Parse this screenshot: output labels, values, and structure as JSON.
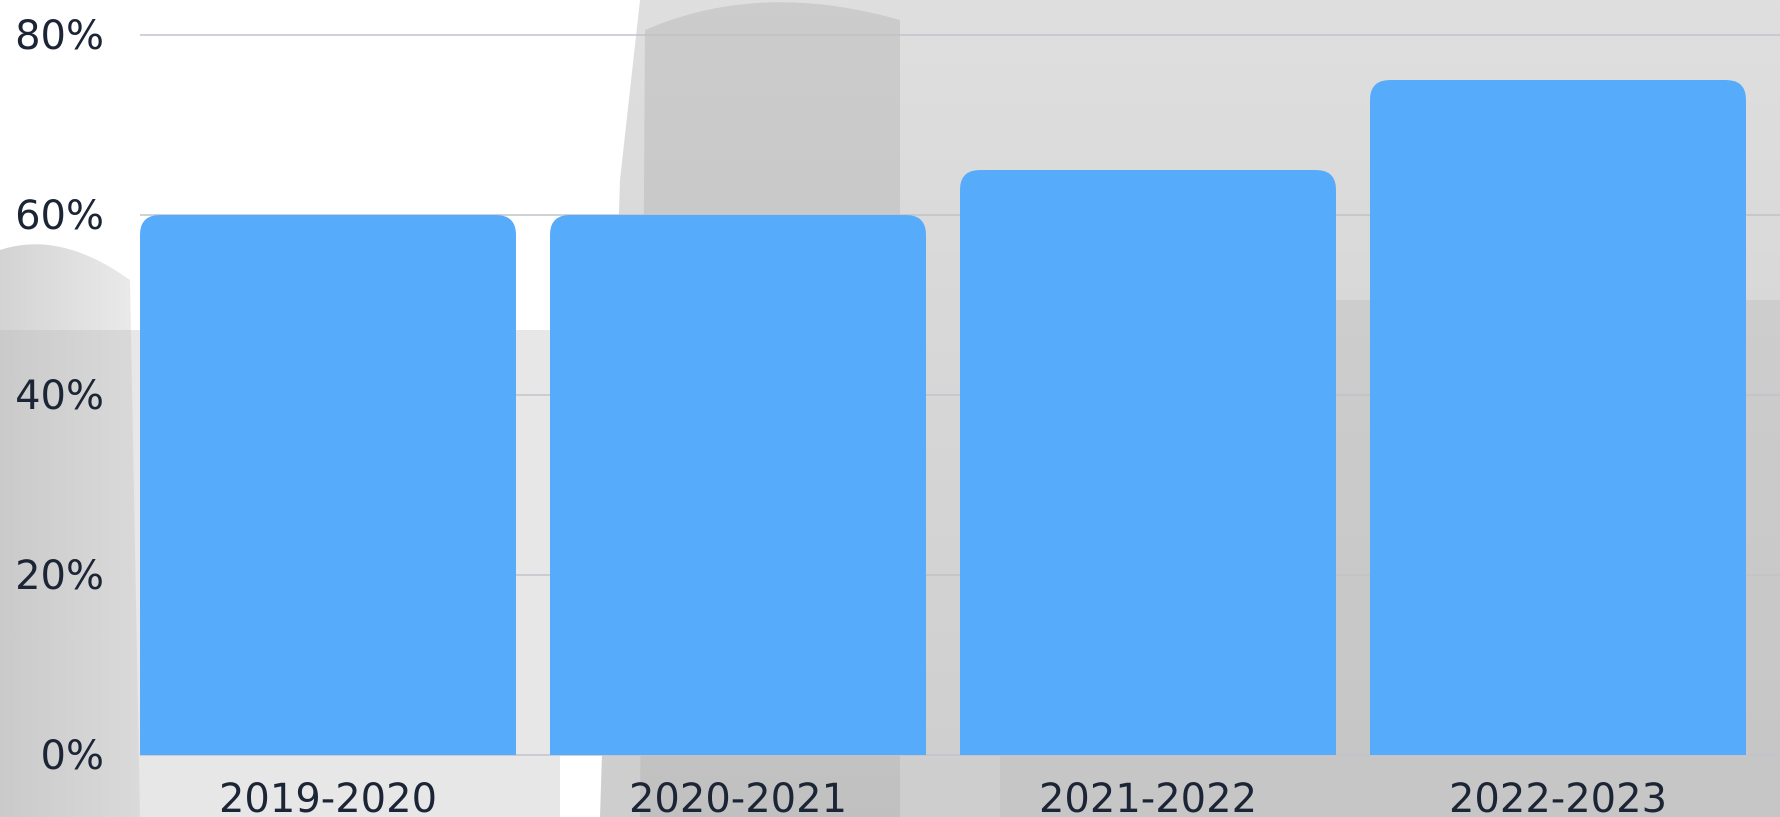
{
  "chart_data": {
    "type": "bar",
    "categories": [
      "2019-2020",
      "2020-2021",
      "2021-2022",
      "2022-2023"
    ],
    "values": [
      60,
      60,
      65,
      75
    ],
    "ylim": [
      0,
      80
    ],
    "yticks": [
      0,
      20,
      40,
      60,
      80
    ],
    "ytick_labels": [
      "0%",
      "20%",
      "40%",
      "60%",
      "80%"
    ],
    "grid": true,
    "colors": {
      "bar": "#56acfb",
      "grid": "#bfc3c8",
      "text": "#1c2535"
    }
  }
}
